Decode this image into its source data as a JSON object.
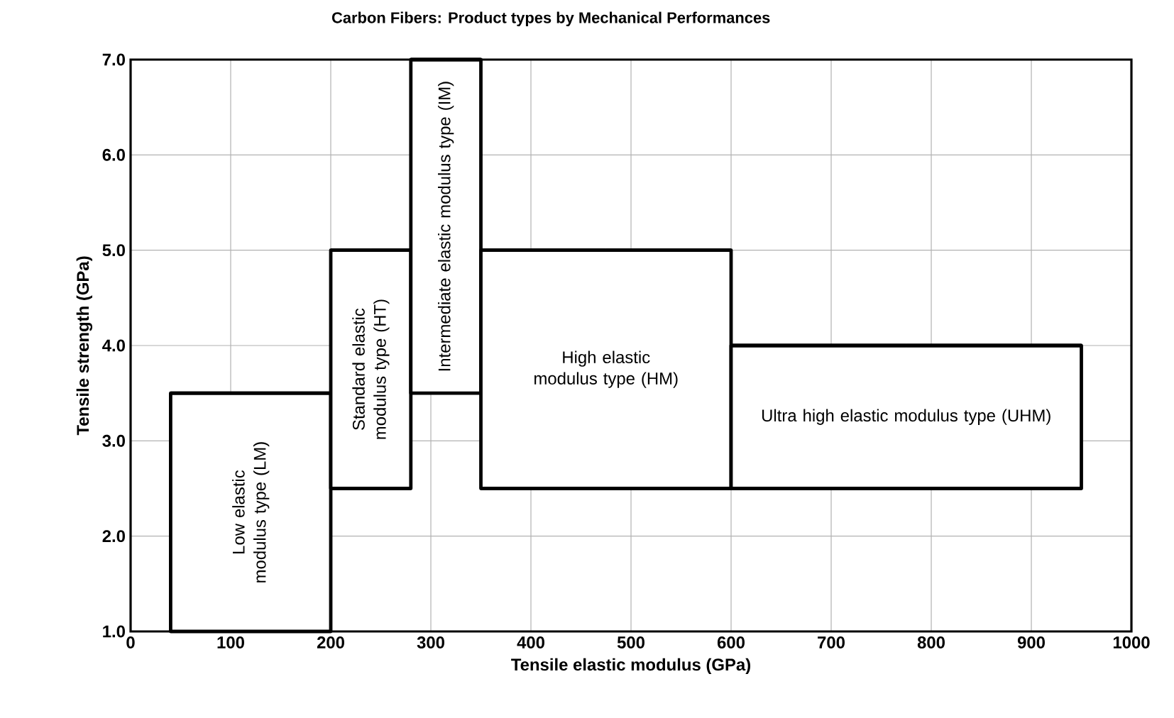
{
  "chart_data": {
    "type": "bar",
    "title": "Carbon Fibers: Product types by Mechanical Performances",
    "xlabel": "Tensile elastic modulus (GPa)",
    "ylabel": "Tensile strength (GPa)",
    "xlim": [
      0,
      1000
    ],
    "ylim": [
      1.0,
      7.0
    ],
    "xticks": [
      0,
      100,
      200,
      300,
      400,
      500,
      600,
      700,
      800,
      900,
      1000
    ],
    "yticks": [
      {
        "value": 1,
        "label": "1.0"
      },
      {
        "value": 2,
        "label": "2.0"
      },
      {
        "value": 3,
        "label": "3.0"
      },
      {
        "value": 4,
        "label": "4.0"
      },
      {
        "value": 5,
        "label": "5.0"
      },
      {
        "value": 6,
        "label": "6.0"
      },
      {
        "value": 7,
        "label": "7.0"
      }
    ],
    "grid": true,
    "series": [
      {
        "name": "Low elastic modulus type (LM)",
        "color": "#000000",
        "x": [
          120
        ],
        "base": [
          1.0
        ],
        "values": [
          2.5
        ],
        "xerrors": [
          [
            40,
            200
          ]
        ]
      },
      {
        "name": "Standard elastic modulus type (HT)",
        "color": "#000000",
        "x": [
          240
        ],
        "base": [
          2.5
        ],
        "values": [
          2.5
        ],
        "xerrors": [
          [
            200,
            280
          ]
        ]
      },
      {
        "name": "Intermediate elastic modulus type (IM)",
        "color": "#000000",
        "x": [
          315
        ],
        "base": [
          3.5
        ],
        "values": [
          3.5
        ],
        "xerrors": [
          [
            280,
            350
          ]
        ]
      },
      {
        "name": "High elastic modulus type (HM)",
        "color": "#000000",
        "x": [
          475
        ],
        "base": [
          2.5
        ],
        "values": [
          2.5
        ],
        "xerrors": [
          [
            350,
            600
          ]
        ]
      },
      {
        "name": "Ultra high elastic modulus type (UHM)",
        "color": "#000000",
        "x": [
          775
        ],
        "base": [
          2.5
        ],
        "values": [
          1.5
        ],
        "xerrors": [
          [
            600,
            950
          ]
        ]
      }
    ]
  }
}
